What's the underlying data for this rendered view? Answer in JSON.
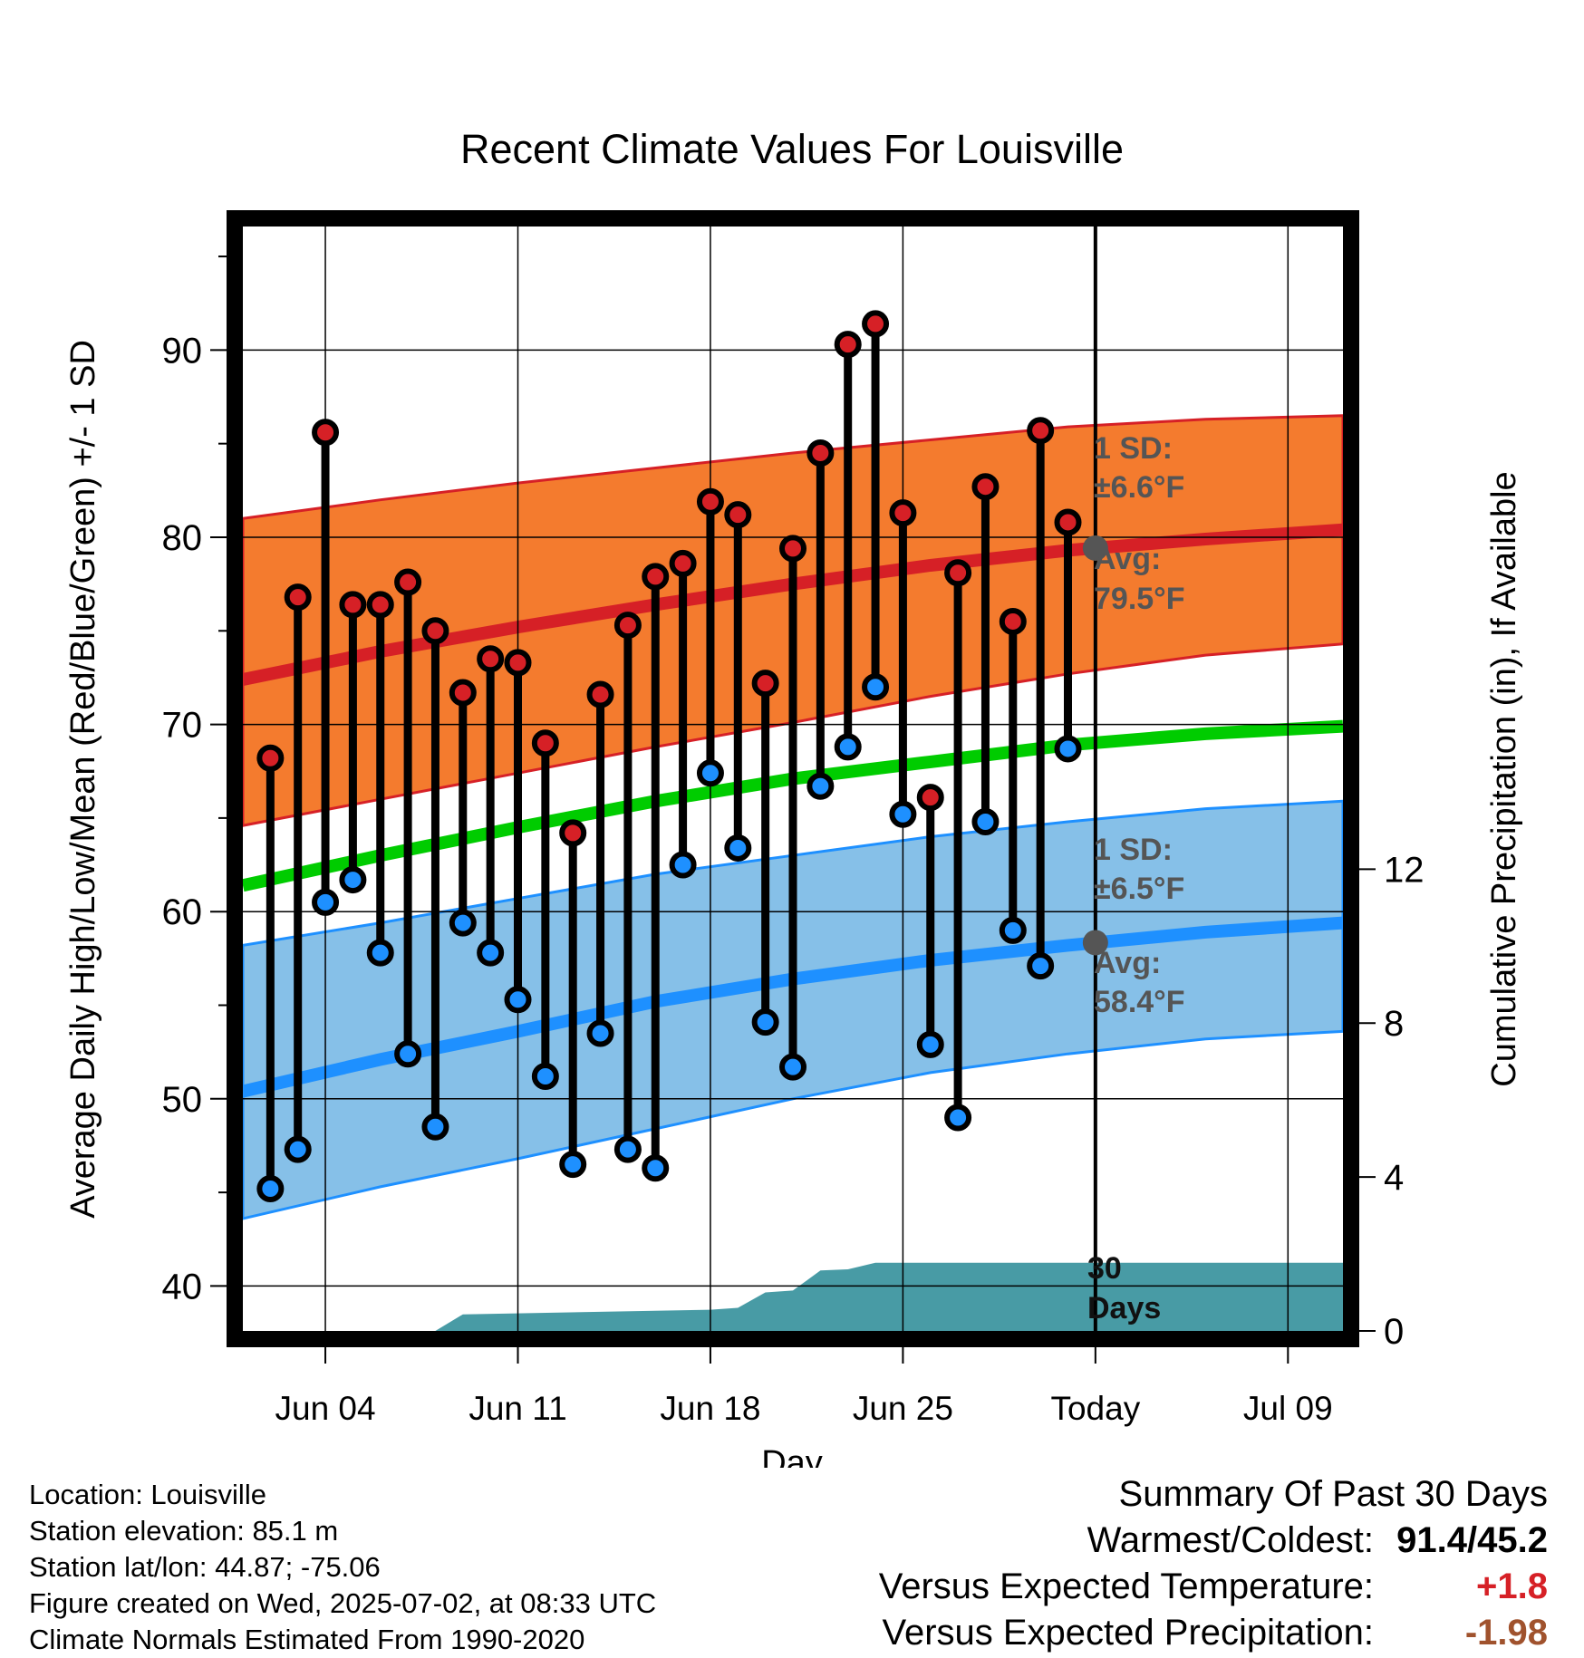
{
  "title": "Recent Climate Values For Louisville",
  "chart_data": {
    "type": "line",
    "title": "Recent Climate Values For Louisville",
    "xlabel": "Day",
    "ylabel_left": "Average Daily High/Low/Mean (Red/Blue/Green) +/- 1 SD",
    "ylabel_right": "Cumulative Precipitation (in), If Available",
    "x_tick_labels": [
      "Jun 04",
      "Jun 11",
      "Jun 18",
      "Jun 25",
      "Today",
      "Jul 09"
    ],
    "y_left_ticks": [
      40,
      50,
      60,
      70,
      80,
      90
    ],
    "y_left_range": [
      37.6,
      96.6
    ],
    "y_right_ticks": [
      0,
      4,
      8,
      12
    ],
    "y_right_range": [
      0,
      28.7
    ],
    "x_range": [
      "Jun 01",
      "Jul 11"
    ],
    "today": "Jul 02",
    "grid": true,
    "days": [
      "Jun 02",
      "Jun 03",
      "Jun 04",
      "Jun 05",
      "Jun 06",
      "Jun 07",
      "Jun 08",
      "Jun 09",
      "Jun 10",
      "Jun 11",
      "Jun 12",
      "Jun 13",
      "Jun 14",
      "Jun 15",
      "Jun 16",
      "Jun 17",
      "Jun 18",
      "Jun 19",
      "Jun 20",
      "Jun 21",
      "Jun 22",
      "Jun 23",
      "Jun 24",
      "Jun 25",
      "Jun 26",
      "Jun 27",
      "Jun 28",
      "Jun 29",
      "Jun 30",
      "Jul 01"
    ],
    "daily_high": [
      68.2,
      76.8,
      85.6,
      76.4,
      76.4,
      77.6,
      75.0,
      71.7,
      73.5,
      73.3,
      69.0,
      64.2,
      71.6,
      75.3,
      77.9,
      78.6,
      81.9,
      81.2,
      72.2,
      79.4,
      84.5,
      90.3,
      91.4,
      81.3,
      66.1,
      78.1,
      82.7,
      75.5,
      85.7,
      80.8
    ],
    "daily_low": [
      45.2,
      47.3,
      60.5,
      61.7,
      57.8,
      52.4,
      48.5,
      59.4,
      57.8,
      55.3,
      51.2,
      46.5,
      53.5,
      47.3,
      46.3,
      62.5,
      67.4,
      63.4,
      54.1,
      51.7,
      66.7,
      68.8,
      72.0,
      65.2,
      52.9,
      49.0,
      64.8,
      59.0,
      57.1,
      68.7
    ],
    "normals": {
      "x_days": [
        "Jun 01",
        "Jun 06",
        "Jun 11",
        "Jun 16",
        "Jun 21",
        "Jun 26",
        "Jul 01",
        "Jul 06",
        "Jul 11"
      ],
      "high_avg": [
        72.4,
        73.9,
        75.2,
        76.4,
        77.5,
        78.5,
        79.3,
        79.9,
        80.4
      ],
      "high_upper": [
        81.0,
        82.0,
        82.9,
        83.7,
        84.5,
        85.2,
        85.9,
        86.3,
        86.5
      ],
      "high_lower": [
        64.6,
        66.0,
        67.4,
        68.8,
        70.1,
        71.5,
        72.7,
        73.7,
        74.3
      ],
      "mean_avg": [
        61.4,
        63.0,
        64.5,
        65.9,
        67.1,
        68.0,
        68.9,
        69.5,
        69.9
      ],
      "low_avg": [
        50.4,
        52.1,
        53.6,
        55.2,
        56.4,
        57.4,
        58.2,
        58.9,
        59.4
      ],
      "low_upper": [
        58.2,
        59.4,
        60.7,
        62.0,
        63.0,
        64.0,
        64.8,
        65.5,
        65.9
      ],
      "low_lower": [
        43.6,
        45.3,
        46.8,
        48.4,
        50.0,
        51.4,
        52.4,
        53.2,
        53.6
      ]
    },
    "precip_cumulative": {
      "x_days": [
        "Jun 01",
        "Jun 08",
        "Jun 09",
        "Jun 18",
        "Jun 19",
        "Jun 20",
        "Jun 21",
        "Jun 22",
        "Jun 23",
        "Jun 24",
        "Jul 11"
      ],
      "values": [
        0.0,
        0.0,
        0.43,
        0.55,
        0.6,
        1.0,
        1.05,
        1.57,
        1.6,
        1.77,
        1.77
      ]
    },
    "annotations": {
      "high_sd": "1 SD:",
      "high_sd_value": "±6.6°F",
      "high_avg": "Avg:",
      "high_avg_value": "79.5°F",
      "low_sd": "1 SD:",
      "low_sd_value": "±6.5°F",
      "low_avg": "Avg:",
      "low_avg_value": "58.4°F",
      "precip_days": "30",
      "precip_days_unit": "Days"
    },
    "colors": {
      "high_band": "#f47b2e",
      "high_line": "#d62026",
      "low_band": "#86c0e8",
      "low_line": "#1e90ff",
      "mean_line": "#00cc00",
      "precip": "#489ba5",
      "high_marker": "#d62026",
      "low_marker": "#1e90ff",
      "annotation_text": "#555555",
      "today_marker": "#555555"
    }
  },
  "info": {
    "location": "Location: Louisville",
    "elevation": "Station elevation: 85.1 m",
    "latlon": "Station lat/lon: 44.87; -75.06",
    "created": "Figure created on Wed, 2025-07-02, at 08:33 UTC",
    "normals": "Climate Normals Estimated From 1990-2020"
  },
  "summary": {
    "heading": "Summary Of Past 30 Days",
    "warmest_label": "Warmest/Coldest:",
    "warmest_value": "91.4/45.2",
    "temp_label": "Versus Expected Temperature:",
    "temp_value": "+1.8",
    "temp_color": "#d62026",
    "precip_label": "Versus Expected Precipitation:",
    "precip_value": "-1.98",
    "precip_color": "#a0522d"
  }
}
